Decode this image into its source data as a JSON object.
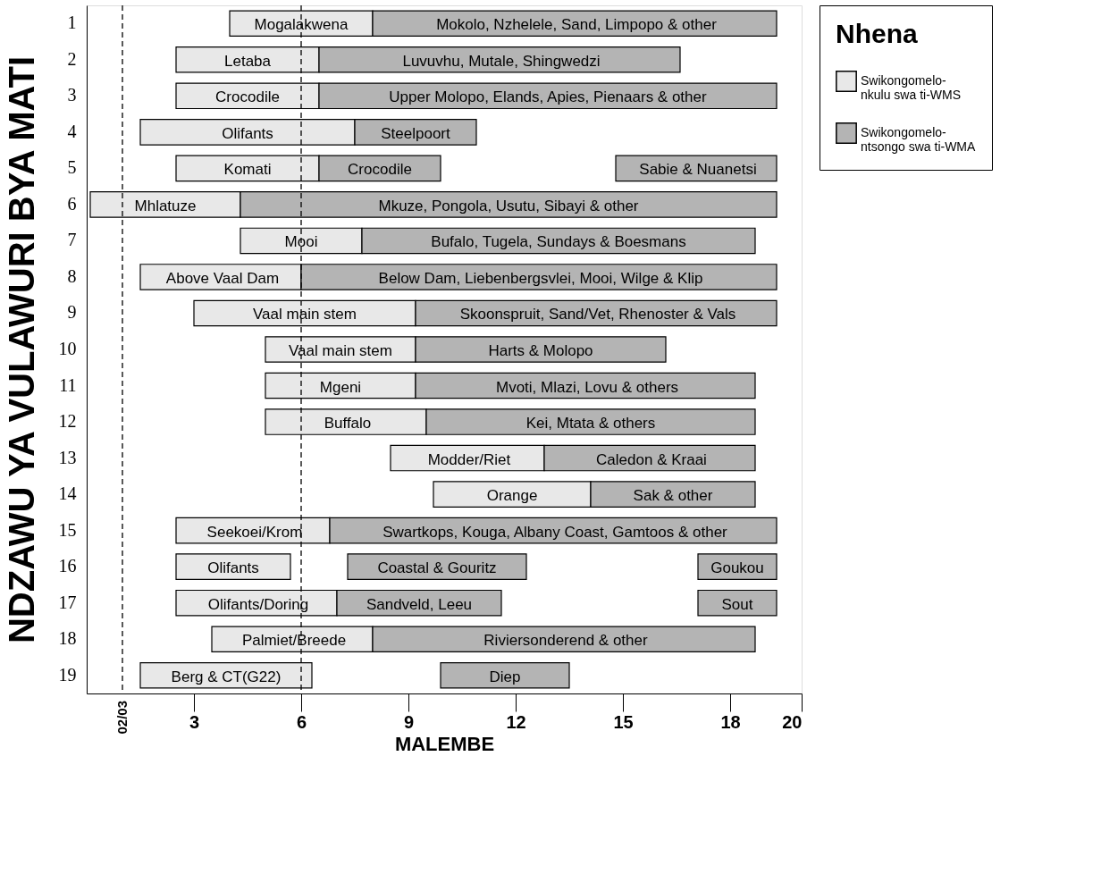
{
  "chart_data": {
    "type": "bar",
    "orientation": "horizontal",
    "xlabel": "MALEMBE",
    "ylabel": "NDZAWU YA VULAWURI BYA MATI",
    "legend_title": "Nhena",
    "legend": "right",
    "grid": false,
    "categories": [
      "1",
      "2",
      "3",
      "4",
      "5",
      "6",
      "7",
      "8",
      "9",
      "10",
      "11",
      "12",
      "13",
      "14",
      "15",
      "16",
      "17",
      "18",
      "19"
    ],
    "xlim": [
      0,
      20
    ],
    "xticks": [
      3,
      6,
      9,
      12,
      15,
      18,
      20
    ],
    "series": [
      {
        "name": "Swikongomelo-nkulu swa ti-WMS",
        "color": "#e8e8e8",
        "base": [
          4.0,
          2.5,
          2.5,
          1.5,
          2.5,
          0.1,
          4.3,
          1.5,
          3.0,
          5.0,
          5.0,
          5.0,
          8.5,
          9.7,
          2.5,
          2.5,
          2.5,
          3.5,
          1.5
        ],
        "values": [
          4.0,
          4.0,
          4.0,
          6.0,
          4.0,
          4.2,
          3.4,
          4.5,
          6.2,
          4.2,
          4.2,
          4.5,
          4.3,
          4.4,
          4.3,
          3.2,
          4.5,
          4.5,
          4.8
        ]
      },
      {
        "name": "Swikongomelo-ntsongo swa ti-WMA",
        "color": "#b4b4b4",
        "base": [
          8.0,
          6.5,
          6.5,
          7.5,
          6.5,
          4.3,
          7.7,
          6.0,
          9.2,
          9.2,
          9.2,
          9.5,
          12.8,
          14.1,
          6.8,
          7.3,
          7.0,
          8.0,
          9.9
        ],
        "values": [
          11.3,
          10.1,
          12.8,
          3.4,
          3.4,
          15.0,
          11.0,
          13.3,
          10.1,
          7.0,
          9.5,
          9.2,
          5.9,
          4.6,
          12.5,
          5.0,
          4.6,
          10.7,
          3.6
        ]
      },
      {
        "color": "#b4b4b4",
        "base": [
          null,
          null,
          null,
          null,
          14.8,
          null,
          null,
          null,
          null,
          null,
          null,
          null,
          null,
          null,
          null,
          17.1,
          17.1,
          null,
          null
        ],
        "values": [
          null,
          null,
          null,
          null,
          4.5,
          null,
          null,
          null,
          null,
          null,
          null,
          null,
          null,
          null,
          null,
          2.2,
          2.2,
          null,
          null
        ]
      }
    ],
    "ref_lines": [
      {
        "axis": "x",
        "value": 1,
        "line_style": "dashed"
      },
      {
        "axis": "x",
        "value": 6,
        "line_style": "dashed"
      }
    ],
    "annotations": [
      "02/03",
      {
        "text": "Mogalakwena",
        "x": 6.0,
        "y": "1"
      },
      {
        "text": "Mokolo, Nzhelele, Sand, Limpopo & other",
        "x": 13.7,
        "y": "1"
      },
      {
        "text": "Letaba",
        "x": 4.5,
        "y": "2"
      },
      {
        "text": "Luvuvhu, Mutale, Shingwedzi",
        "x": 11.6,
        "y": "2"
      },
      {
        "text": "Crocodile",
        "x": 4.5,
        "y": "3"
      },
      {
        "text": "Upper Molopo, Elands, Apies, Pienaars & other",
        "x": 12.9,
        "y": "3"
      },
      {
        "text": "Olifants",
        "x": 4.5,
        "y": "4"
      },
      {
        "text": "Steelpoort",
        "x": 9.2,
        "y": "4"
      },
      {
        "text": "Komati",
        "x": 4.5,
        "y": "5"
      },
      {
        "text": "Crocodile",
        "x": 8.2,
        "y": "5"
      },
      {
        "text": "Sabie & Nuanetsi",
        "x": 17.1,
        "y": "5"
      },
      {
        "text": "Mhlatuze",
        "x": 2.2,
        "y": "6"
      },
      {
        "text": "Mkuze, Pongola, Usutu, Sibayi & other",
        "x": 11.8,
        "y": "6"
      },
      {
        "text": "Mooi",
        "x": 6.0,
        "y": "7"
      },
      {
        "text": "Bufalo, Tugela, Sundays & Boesmans",
        "x": 13.2,
        "y": "7"
      },
      {
        "text": "Above Vaal Dam",
        "x": 3.8,
        "y": "8"
      },
      {
        "text": "Below Dam, Liebenbergsvlei, Mooi, Wilge & Klip",
        "x": 12.7,
        "y": "8"
      },
      {
        "text": "Vaal main stem",
        "x": 6.1,
        "y": "9"
      },
      {
        "text": "Skoonspruit, Sand/Vet, Rhenoster & Vals",
        "x": 14.3,
        "y": "9"
      },
      {
        "text": "Vaal main stem",
        "x": 7.1,
        "y": "10"
      },
      {
        "text": "Harts & Molopo",
        "x": 12.7,
        "y": "10"
      },
      {
        "text": "Mgeni",
        "x": 7.1,
        "y": "11"
      },
      {
        "text": "Mvoti, Mlazi, Lovu & others",
        "x": 14.0,
        "y": "11"
      },
      {
        "text": "Buffalo",
        "x": 7.3,
        "y": "12"
      },
      {
        "text": "Kei, Mtata & others",
        "x": 14.1,
        "y": "12"
      },
      {
        "text": "Modder/Riet",
        "x": 10.7,
        "y": "13"
      },
      {
        "text": "Caledon & Kraai",
        "x": 15.8,
        "y": "13"
      },
      {
        "text": "Orange",
        "x": 11.9,
        "y": "14"
      },
      {
        "text": "Sak & other",
        "x": 16.4,
        "y": "14"
      },
      {
        "text": "Seekoei/Krom",
        "x": 4.7,
        "y": "15"
      },
      {
        "text": "Swartkops, Kouga, Albany Coast, Gamtoos & other",
        "x": 13.1,
        "y": "15"
      },
      {
        "text": "Olifants",
        "x": 4.1,
        "y": "16"
      },
      {
        "text": "Coastal & Gouritz",
        "x": 9.8,
        "y": "16"
      },
      {
        "text": "Goukou",
        "x": 18.2,
        "y": "16"
      },
      {
        "text": "Olifants/Doring",
        "x": 4.8,
        "y": "17"
      },
      {
        "text": "Sandveld, Leeu",
        "x": 9.3,
        "y": "17"
      },
      {
        "text": "Sout",
        "x": 18.2,
        "y": "17"
      },
      {
        "text": "Palmiet/Breede",
        "x": 5.8,
        "y": "18"
      },
      {
        "text": "Riviersonderend & other",
        "x": 13.4,
        "y": "18"
      },
      {
        "text": "Berg & CT(G22)",
        "x": 3.9,
        "y": "19"
      },
      {
        "text": "Diep",
        "x": 11.7,
        "y": "19"
      }
    ]
  }
}
